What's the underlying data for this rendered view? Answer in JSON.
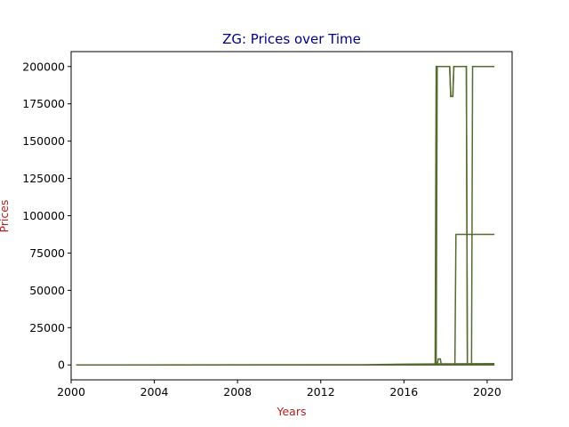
{
  "chart_data": {
    "type": "line",
    "title": "ZG: Prices over Time",
    "xlabel": "Years",
    "ylabel": "Prices",
    "xlim": [
      2000,
      2021.2
    ],
    "ylim": [
      -10000,
      210000
    ],
    "x_ticks": [
      2000,
      2004,
      2008,
      2012,
      2016,
      2020
    ],
    "y_ticks": [
      0,
      25000,
      50000,
      75000,
      100000,
      125000,
      150000,
      175000,
      200000
    ],
    "grid": false,
    "legend": "none",
    "series": [
      {
        "values": [
          [
            2000.25,
            0
          ],
          [
            2017.5,
            0
          ],
          [
            2017.55,
            200000
          ],
          [
            2018.2,
            200000
          ],
          [
            2018.25,
            180000
          ],
          [
            2018.35,
            180000
          ],
          [
            2018.4,
            200000
          ],
          [
            2019.0,
            200000
          ],
          [
            2019.05,
            0
          ],
          [
            2019.25,
            0
          ],
          [
            2019.3,
            200000
          ],
          [
            2020.35,
            200000
          ]
        ]
      },
      {
        "values": [
          [
            2000.25,
            0
          ],
          [
            2017.55,
            0
          ],
          [
            2017.6,
            200000
          ],
          [
            2018.2,
            200000
          ],
          [
            2018.25,
            180000
          ],
          [
            2018.35,
            180000
          ],
          [
            2018.4,
            200000
          ],
          [
            2019.0,
            200000
          ],
          [
            2019.05,
            0
          ],
          [
            2020.35,
            0
          ]
        ]
      },
      {
        "values": [
          [
            2000.25,
            0
          ],
          [
            2018.45,
            0
          ],
          [
            2018.5,
            87500
          ],
          [
            2020.35,
            87500
          ]
        ]
      },
      {
        "values": [
          [
            2000.25,
            0
          ],
          [
            2017.6,
            0
          ],
          [
            2017.65,
            4000
          ],
          [
            2017.75,
            4000
          ],
          [
            2017.8,
            0
          ],
          [
            2020.35,
            0
          ]
        ]
      },
      {
        "values": [
          [
            2000.25,
            0
          ],
          [
            2014.0,
            150
          ],
          [
            2016.0,
            500
          ],
          [
            2018.0,
            700
          ],
          [
            2020.35,
            900
          ]
        ]
      }
    ],
    "colors": {
      "line": "#556b2f",
      "title": "#00008b",
      "axis_label": "#b22222",
      "spine": "#000000"
    }
  }
}
